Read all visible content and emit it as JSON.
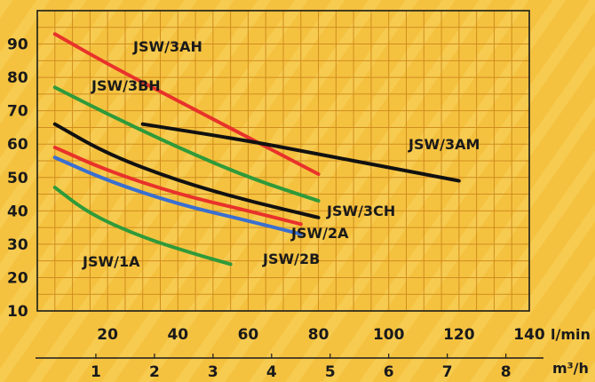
{
  "chart_data": {
    "type": "line",
    "title": "",
    "ylabel": "",
    "xlabel": "l/min",
    "xlabel_secondary": "m³/h",
    "xlim": [
      0,
      140
    ],
    "ylim": [
      10,
      100
    ],
    "grid": true,
    "y_ticks": [
      "10",
      "20",
      "30",
      "40",
      "50",
      "60",
      "70",
      "80",
      "90"
    ],
    "x_ticks": [
      "20",
      "40",
      "60",
      "80",
      "100",
      "120",
      "140"
    ],
    "x2_ticks": [
      "1",
      "2",
      "3",
      "4",
      "5",
      "6",
      "7",
      "8"
    ],
    "series": [
      {
        "name": "JSW/3AH",
        "color": "#e8322a",
        "x": [
          5,
          20,
          40,
          60,
          80
        ],
        "y": [
          93,
          84,
          73,
          62,
          51
        ]
      },
      {
        "name": "JSW/3BH",
        "color": "#2f9a3a",
        "x": [
          5,
          20,
          40,
          60,
          80
        ],
        "y": [
          77,
          69,
          59,
          50,
          43
        ]
      },
      {
        "name": "JSW/3AM",
        "color": "#111111",
        "x": [
          30,
          60,
          80,
          100,
          120
        ],
        "y": [
          66,
          61,
          57,
          53,
          49
        ]
      },
      {
        "name": "JSW/3CH",
        "color": "#111111",
        "x": [
          5,
          20,
          40,
          60,
          80
        ],
        "y": [
          66,
          57,
          49,
          43,
          38
        ]
      },
      {
        "name": "JSW/2A",
        "color": "#e8322a",
        "x": [
          5,
          20,
          40,
          60,
          75
        ],
        "y": [
          59,
          52,
          45,
          40,
          36
        ]
      },
      {
        "name": "JSW/2B",
        "color": "#3a6fd0",
        "x": [
          5,
          20,
          40,
          60,
          75
        ],
        "y": [
          56,
          49,
          42,
          37,
          33
        ]
      },
      {
        "name": "JSW/1A",
        "color": "#2f9a3a",
        "x": [
          5,
          15,
          30,
          45,
          55
        ],
        "y": [
          47,
          39,
          32,
          27,
          24
        ]
      }
    ]
  }
}
